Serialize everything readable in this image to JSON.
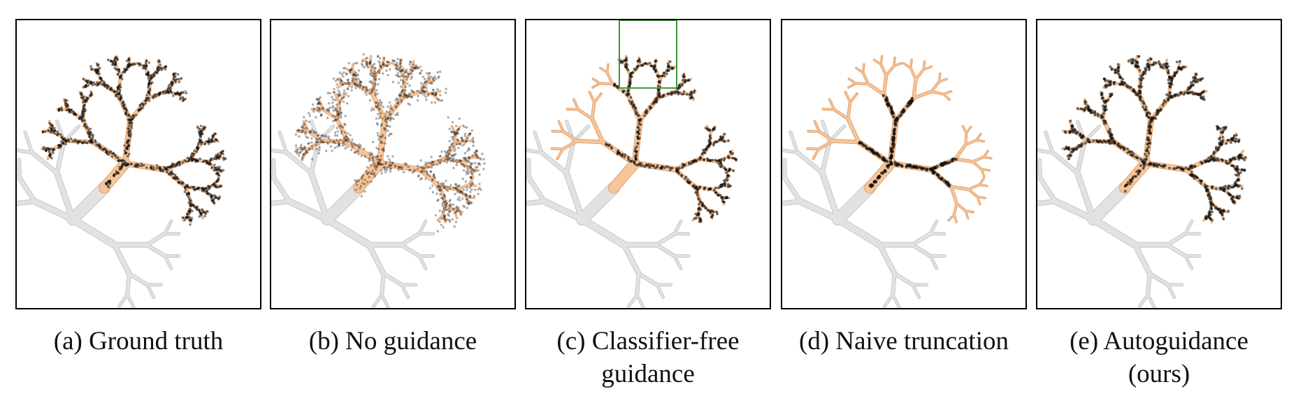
{
  "figure": {
    "panels": [
      {
        "id": "a",
        "caption_lines": [
          "(a) Ground truth"
        ],
        "samples": "dense",
        "highlight_box": false
      },
      {
        "id": "b",
        "caption_lines": [
          "(b) No guidance"
        ],
        "samples": "noisy",
        "highlight_box": false
      },
      {
        "id": "c",
        "caption_lines": [
          "(c) Classifier-free",
          "guidance"
        ],
        "samples": "cfg",
        "highlight_box": true
      },
      {
        "id": "d",
        "caption_lines": [
          "(d) Naive truncation"
        ],
        "samples": "truncation",
        "highlight_box": false
      },
      {
        "id": "e",
        "caption_lines": [
          "(e) Autoguidance",
          "(ours)"
        ],
        "samples": "auto",
        "highlight_box": false
      }
    ],
    "colors": {
      "target_class": "#f7c59a",
      "target_outline": "#e3a36f",
      "other_class": "#e2e2e2",
      "other_outline": "#c8c8c8",
      "sample": "#111111",
      "highlight_box": "#3a9a3a"
    }
  }
}
